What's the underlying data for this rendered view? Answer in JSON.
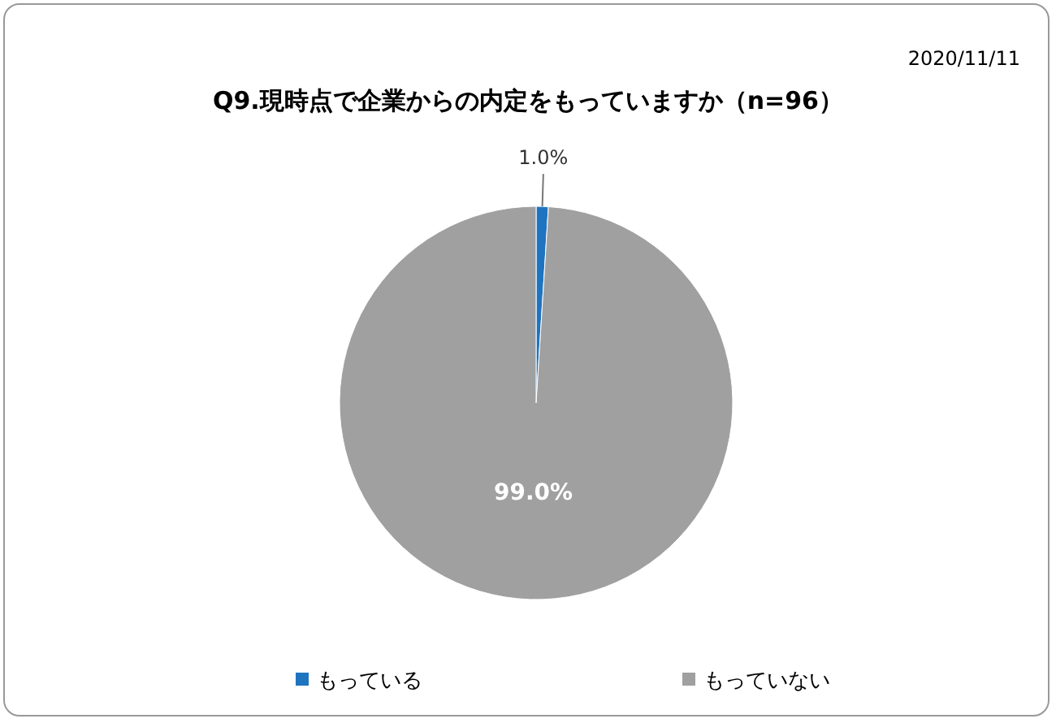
{
  "chart_data": {
    "type": "pie",
    "title": "Q9.現時点で企業からの内定をもっていますか（n=96）",
    "categories": [
      "もっている",
      "もっていない"
    ],
    "values": [
      1.0,
      99.0
    ],
    "colors": [
      "#1f74c0",
      "#a0a0a0"
    ],
    "value_labels": [
      "1.0%",
      "99.0%"
    ],
    "legend": "bottom",
    "annotations": [
      "2020/11/11"
    ]
  }
}
